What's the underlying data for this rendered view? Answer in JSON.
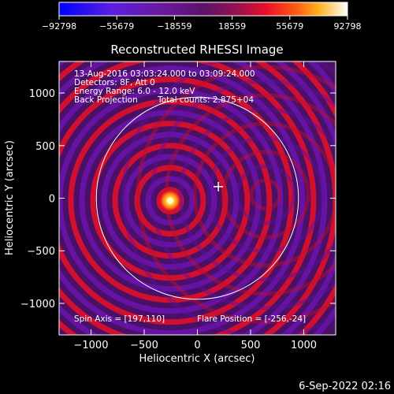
{
  "chart_data": {
    "type": "heatmap",
    "title": "Reconstructed RHESSI Image",
    "xlabel": "Heliocentric X (arcsec)",
    "ylabel": "Heliocentric Y (arcsec)",
    "xlim": [
      -1300,
      1300
    ],
    "ylim": [
      -1300,
      1300
    ],
    "xticks": [
      -1000,
      -500,
      0,
      500,
      1000
    ],
    "yticks": [
      -1000,
      -500,
      0,
      500,
      1000
    ],
    "xtick_labels": [
      "−1000",
      "−500",
      "0",
      "500",
      "1000"
    ],
    "ytick_labels": [
      "−1000",
      "−500",
      "0",
      "500",
      "1000"
    ],
    "colorbar": {
      "min": -92798,
      "max": 92798,
      "ticks": [
        -92798,
        -55679,
        -18559,
        18559,
        55679,
        92798
      ],
      "tick_labels": [
        "−92798",
        "−55679",
        "−18559",
        "18559",
        "55679",
        "92798"
      ]
    },
    "annotations": {
      "time_range": "13-Aug-2016 03:03:24.000 to 03:09:24.000",
      "detectors": "Detectors: 8F, Att 0",
      "energy_range": "Energy Range: 6.0 - 12.0 keV",
      "method": "Back Projection",
      "total_counts": "Total counts: 2.875+04",
      "spin_axis": "Spin Axis = [197,110]",
      "flare_position": "Flare Position = [-256,-24]"
    },
    "source": {
      "x": -256,
      "y": -24,
      "peak": 92798
    },
    "spin_axis": {
      "x": 197,
      "y": 110
    },
    "solar_disk_radius": 950,
    "timestamp": "6-Sep-2022 02:16"
  },
  "colors": {
    "background": "#000000",
    "foreground": "#ffffff",
    "negative": "#1a10ff",
    "positive_low": "#e8102a",
    "positive_high": "#ffff80",
    "neutral": "#4a1066"
  }
}
